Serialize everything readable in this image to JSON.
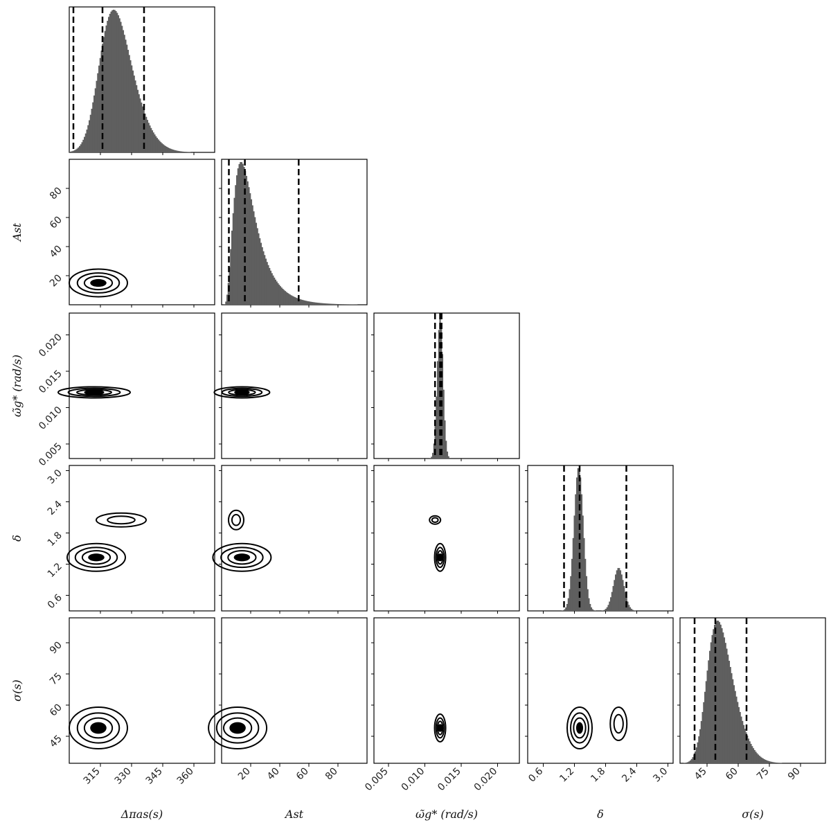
{
  "chart_data": {
    "type": "corner",
    "parameters": [
      {
        "key": "dpi",
        "label": "Δπas(s)",
        "range": [
          300,
          370
        ],
        "ticks": [
          315,
          330,
          345,
          360
        ],
        "tick_labels": [
          "315",
          "330",
          "345",
          "360"
        ],
        "quantiles": [
          302,
          316,
          336
        ],
        "posterior": {
          "type": "skewnormal",
          "loc": 315,
          "scale": 12,
          "skew": 2.0
        }
      },
      {
        "key": "ast",
        "label": "Ast",
        "range": [
          0,
          100
        ],
        "ticks": [
          20,
          40,
          60,
          80
        ],
        "tick_labels": [
          "20",
          "40",
          "60",
          "80"
        ],
        "quantiles": [
          5,
          16,
          53
        ],
        "posterior": {
          "type": "lognormal",
          "mode": 12.5,
          "median": 18,
          "sigma": 0.55
        }
      },
      {
        "key": "omega",
        "label": "ω̃g* (rad/s)",
        "range": [
          0.003,
          0.023
        ],
        "ticks": [
          0.005,
          0.01,
          0.015,
          0.02
        ],
        "tick_labels": [
          "0.005",
          "0.010",
          "0.015",
          "0.020"
        ],
        "quantiles": [
          0.0114,
          0.0121,
          0.0123
        ],
        "posterior": {
          "type": "normal",
          "mean": 0.0121,
          "sd": 0.0004
        }
      },
      {
        "key": "delta",
        "label": "δ",
        "range": [
          0.3,
          3.1
        ],
        "ticks": [
          0.6,
          1.2,
          1.8,
          2.4,
          3.0
        ],
        "tick_labels": [
          "0.6",
          "1.2",
          "1.8",
          "2.4",
          "3.0"
        ],
        "quantiles": [
          1.0,
          1.3,
          2.2
        ],
        "posterior": {
          "type": "mixture",
          "components": [
            {
              "weight": 0.75,
              "mean": 1.28,
              "sd": 0.09
            },
            {
              "weight": 0.25,
              "mean": 2.05,
              "sd": 0.1
            }
          ]
        }
      },
      {
        "key": "sigma",
        "label": "σ(s)",
        "range": [
          32,
          102
        ],
        "ticks": [
          45,
          60,
          75,
          90
        ],
        "tick_labels": [
          "45",
          "60",
          "75",
          "90"
        ],
        "quantiles": [
          39,
          49,
          64
        ],
        "posterior": {
          "type": "skewnormal",
          "loc": 45,
          "scale": 10,
          "skew": 2.5
        }
      }
    ],
    "contour_centers": {
      "ast|dpi": [
        [
          314,
          15
        ]
      ],
      "omega|dpi": [
        [
          312,
          0.0121
        ]
      ],
      "omega|ast": [
        [
          14,
          0.0121
        ]
      ],
      "delta|dpi": [
        [
          313,
          1.33
        ],
        [
          325,
          2.05
        ]
      ],
      "delta|ast": [
        [
          14,
          1.33
        ],
        [
          10,
          2.05
        ]
      ],
      "delta|omega": [
        [
          0.0121,
          1.33
        ],
        [
          0.0114,
          2.05
        ]
      ],
      "sigma|dpi": [
        [
          314,
          49
        ]
      ],
      "sigma|ast": [
        [
          11,
          49
        ]
      ],
      "sigma|omega": [
        [
          0.0121,
          49
        ]
      ],
      "sigma|delta": [
        [
          1.3,
          49
        ],
        [
          2.05,
          51
        ]
      ]
    },
    "histogram_color": "#5f5f5f",
    "line_color": "#000000"
  }
}
